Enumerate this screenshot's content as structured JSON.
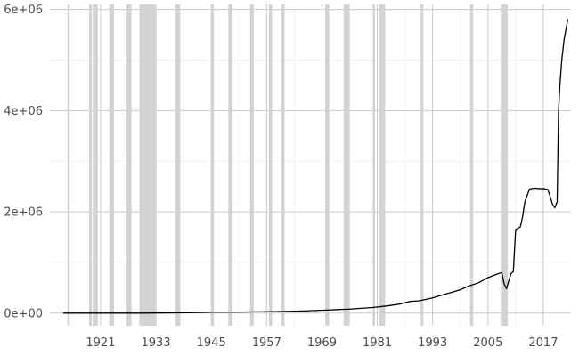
{
  "chart_data": {
    "type": "line",
    "title": "",
    "xlabel": "",
    "ylabel": "",
    "xlim": [
      1910,
      2023
    ],
    "ylim": [
      -250000,
      6100000
    ],
    "x_ticks": [
      1921,
      1933,
      1945,
      1957,
      1969,
      1981,
      1993,
      2005,
      2017
    ],
    "x_tick_labels": [
      "1921",
      "1933",
      "1945",
      "1957",
      "1969",
      "1981",
      "1993",
      "2005",
      "2017"
    ],
    "y_ticks": [
      0,
      2000000,
      4000000,
      6000000
    ],
    "y_tick_labels": [
      "0e+00",
      "2e+06",
      "4e+06",
      "6e+06"
    ],
    "grid": true,
    "recession_shading_color": "#d3d3d3",
    "line_color": "#000000",
    "recession_periods": [
      [
        1913.8,
        1914.3
      ],
      [
        1918.5,
        1919.1
      ],
      [
        1919.3,
        1920.4
      ],
      [
        1922.9,
        1923.9
      ],
      [
        1926.6,
        1927.7
      ],
      [
        1929.4,
        1933.0
      ],
      [
        1937.2,
        1938.3
      ],
      [
        1944.9,
        1945.6
      ],
      [
        1948.7,
        1949.6
      ],
      [
        1953.4,
        1954.2
      ],
      [
        1957.5,
        1958.2
      ],
      [
        1960.2,
        1960.9
      ],
      [
        1969.7,
        1970.6
      ],
      [
        1973.7,
        1975.0
      ],
      [
        1980.0,
        1980.5
      ],
      [
        1981.4,
        1982.7
      ],
      [
        1990.4,
        1991.0
      ],
      [
        2001.1,
        2001.8
      ],
      [
        2007.8,
        2009.3
      ]
    ],
    "series": [
      {
        "name": "",
        "x": [
          1913,
          1920,
          1930,
          1940,
          1944,
          1946,
          1950,
          1955,
          1960,
          1965,
          1970,
          1975,
          1980,
          1983,
          1986,
          1988,
          1990,
          1993,
          1996,
          1999,
          2001,
          2003,
          2005,
          2007,
          2008,
          2008.5,
          2009,
          2010,
          2010.5,
          2011,
          2012,
          2012.5,
          2013,
          2014,
          2015,
          2016,
          2017,
          2018,
          2019,
          2019.5,
          2020,
          2020.3,
          2020.6,
          2021,
          2021.5,
          2022.3
        ],
        "values": [
          0,
          0,
          0,
          8000,
          15000,
          20000,
          18000,
          25000,
          32000,
          42000,
          60000,
          80000,
          110000,
          140000,
          180000,
          230000,
          240000,
          300000,
          380000,
          460000,
          540000,
          600000,
          700000,
          770000,
          800000,
          580000,
          480000,
          780000,
          820000,
          1650000,
          1700000,
          1900000,
          2200000,
          2450000,
          2470000,
          2460000,
          2460000,
          2440000,
          2150000,
          2080000,
          2200000,
          4000000,
          4500000,
          5000000,
          5400000,
          5800000
        ]
      }
    ]
  }
}
